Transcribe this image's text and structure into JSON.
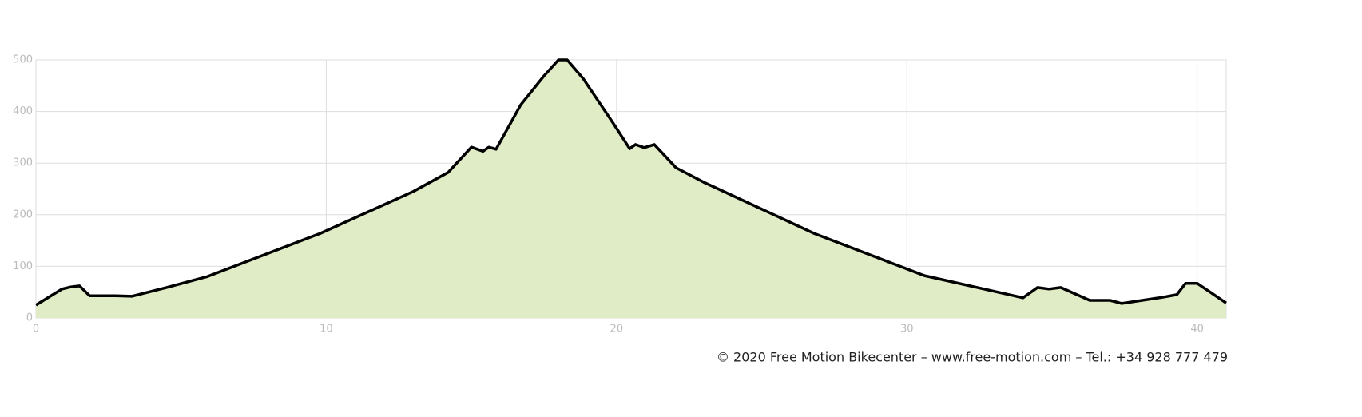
{
  "chart_data": {
    "type": "area",
    "footer": "© 2020 Free Motion Bikecenter – www.free-motion.com – Tel.: +34 928 777 479",
    "x": [
      0,
      0.9,
      1.2,
      1.5,
      1.85,
      2.75,
      3.3,
      4.5,
      5.9,
      9.8,
      13.0,
      14.2,
      15.0,
      15.4,
      15.6,
      15.85,
      16.7,
      17.5,
      18.0,
      18.3,
      18.85,
      19.9,
      20.45,
      20.65,
      20.95,
      21.3,
      22.05,
      23.0,
      26.8,
      30.6,
      34.0,
      34.5,
      34.9,
      35.3,
      36.3,
      37.0,
      37.4,
      38.8,
      39.3,
      39.6,
      40.0,
      41.0
    ],
    "values": [
      25,
      56,
      60,
      62,
      43,
      43,
      42,
      59,
      80,
      164,
      245,
      282,
      331,
      323,
      331,
      327,
      413,
      469,
      500,
      500,
      464,
      376,
      328,
      336,
      330,
      336,
      291,
      263,
      164,
      82,
      39,
      59,
      56,
      59,
      34,
      34,
      28,
      40,
      45,
      67,
      67,
      29
    ],
    "color": "#dfecc6",
    "line_color": "#000000",
    "xlim": [
      0,
      41
    ],
    "xticks": [
      0,
      10,
      20,
      30,
      40
    ],
    "ylim": [
      0,
      500
    ],
    "yticks": [
      0,
      100,
      200,
      300,
      400,
      500
    ],
    "grid": true
  }
}
